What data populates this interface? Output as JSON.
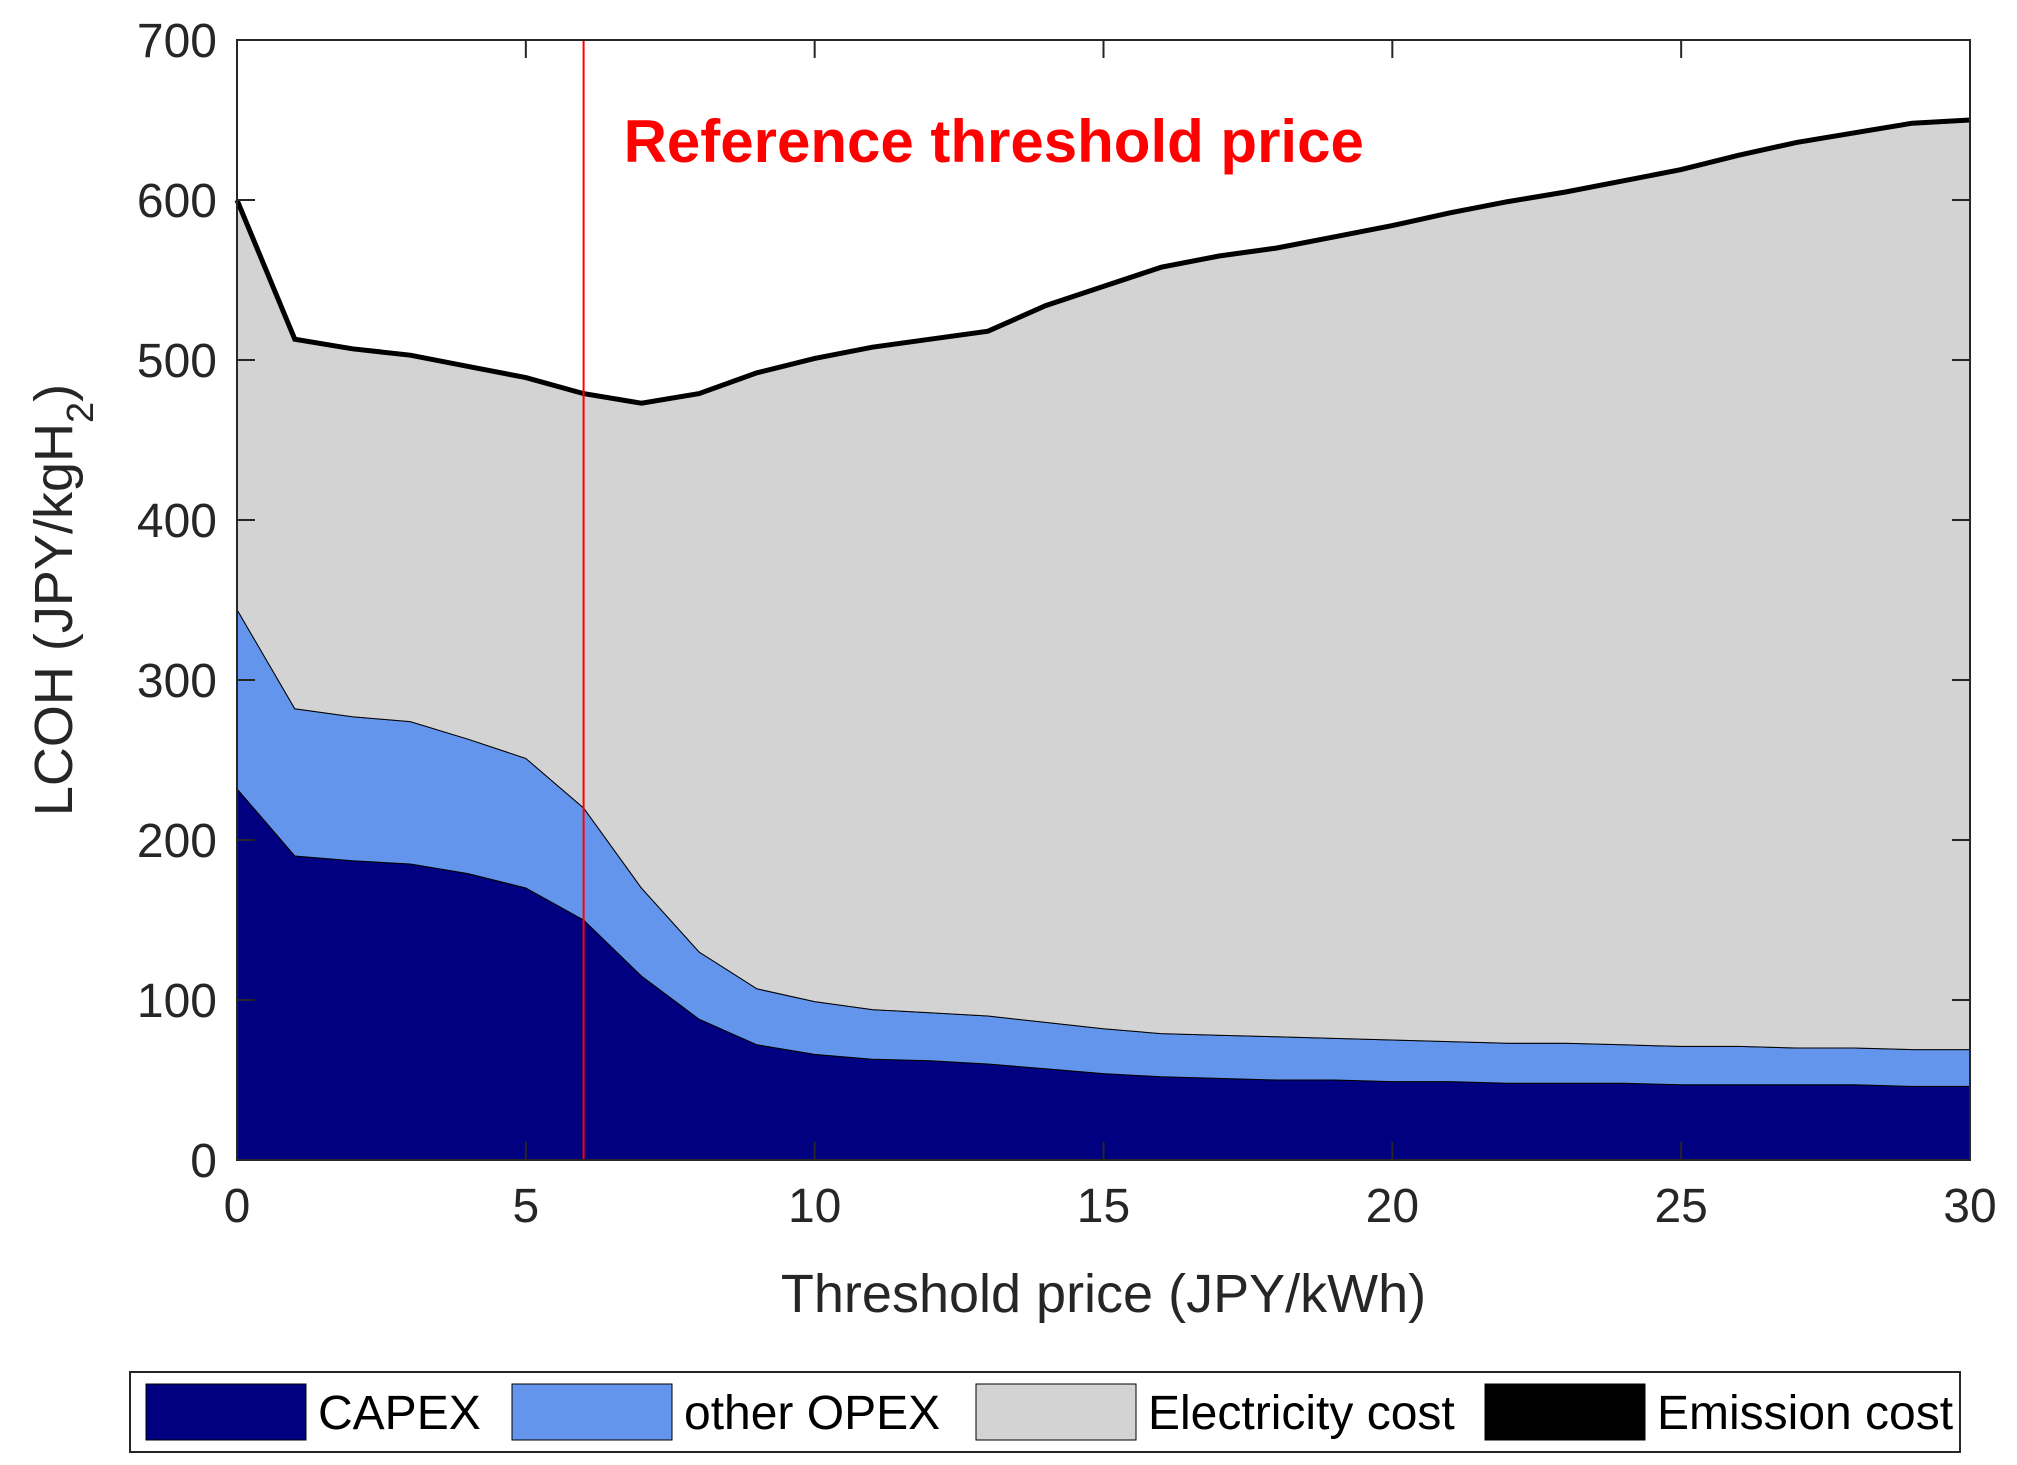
{
  "chart_data": {
    "type": "area",
    "stacked": true,
    "title": "",
    "xlabel": "Threshold price (JPY/kWh)",
    "ylabel": {
      "main": "LCOH (JPY/kgH",
      "subscript": "2",
      "close": ")"
    },
    "xlim": [
      0,
      30
    ],
    "ylim": [
      0,
      700
    ],
    "xticks": [
      0,
      5,
      10,
      15,
      20,
      25,
      30
    ],
    "yticks": [
      0,
      100,
      200,
      300,
      400,
      500,
      600,
      700
    ],
    "x": [
      0,
      1,
      2,
      3,
      4,
      5,
      6,
      7,
      8,
      9,
      10,
      11,
      12,
      13,
      14,
      15,
      16,
      17,
      18,
      19,
      20,
      21,
      22,
      23,
      24,
      25,
      26,
      27,
      28,
      29,
      30
    ],
    "series": [
      {
        "name": "CAPEX",
        "color": "#000080",
        "values": [
          232,
          190,
          187,
          185,
          179,
          170,
          150,
          115,
          88,
          72,
          66,
          63,
          62,
          60,
          57,
          54,
          52,
          51,
          50,
          50,
          49,
          49,
          48,
          48,
          48,
          47,
          47,
          47,
          47,
          46,
          46
        ]
      },
      {
        "name": "other OPEX",
        "color": "#6495ED",
        "values": [
          112,
          92,
          90,
          89,
          84,
          81,
          70,
          55,
          42,
          35,
          33,
          31,
          30,
          30,
          29,
          28,
          27,
          27,
          27,
          26,
          26,
          25,
          25,
          25,
          24,
          24,
          24,
          23,
          23,
          23,
          23
        ]
      },
      {
        "name": "Electricity cost",
        "color": "#D3D3D3",
        "values": [
          256,
          231,
          230,
          229,
          233,
          238,
          259,
          303,
          349,
          385,
          402,
          414,
          421,
          428,
          448,
          464,
          479,
          487,
          493,
          501,
          509,
          518,
          526,
          532,
          540,
          548,
          557,
          566,
          572,
          579,
          581
        ]
      },
      {
        "name": "Emission cost",
        "color": "#000000",
        "values": [
          0,
          0,
          0,
          0,
          0,
          0,
          0,
          0,
          0,
          0,
          0,
          0,
          0,
          0,
          0,
          0,
          0,
          0,
          0,
          0,
          0,
          0,
          0,
          0,
          0,
          0,
          0,
          0,
          0,
          0,
          0
        ]
      }
    ],
    "total": [
      600,
      513,
      507,
      503,
      496,
      489,
      479,
      473,
      479,
      492,
      501,
      508,
      513,
      518,
      534,
      546,
      558,
      565,
      570,
      577,
      584,
      592,
      599,
      605,
      612,
      619,
      628,
      636,
      642,
      648,
      650
    ],
    "reference_line": {
      "x": 6,
      "label": "Reference threshold price",
      "color": "#FF0000"
    },
    "legend_placement": "bottom"
  }
}
